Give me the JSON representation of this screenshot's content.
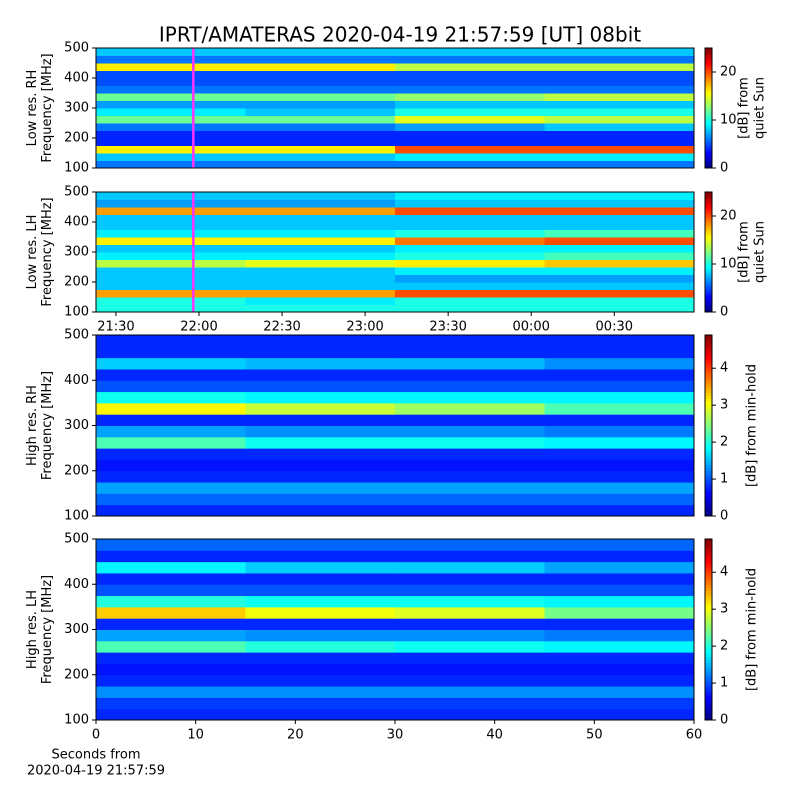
{
  "title": "IPRT/AMATERAS 2020-04-19 21:57:59 [UT]   08bit",
  "chart_data": [
    {
      "type": "heatmap",
      "ylabel": [
        "Low res. RH",
        "Frequency [MHz]"
      ],
      "clabel": [
        "[dB] from",
        "quiet Sun"
      ],
      "xlim": [
        21.38,
        24.98
      ],
      "ylim": [
        100,
        500
      ],
      "yticks": [
        100,
        200,
        300,
        400,
        500
      ],
      "clim": [
        0,
        25
      ],
      "cticks": [
        0,
        10,
        20
      ],
      "colormap": "jet",
      "marker_x": 21.966,
      "marker_color": "#ff33ff",
      "z": [
        [
          6,
          6,
          6,
          6
        ],
        [
          8,
          8,
          9,
          9
        ],
        [
          16,
          16,
          20,
          20
        ],
        [
          4,
          4,
          4,
          4
        ],
        [
          4,
          4,
          4,
          4
        ],
        [
          6,
          6,
          7,
          8
        ],
        [
          12,
          12,
          15,
          14
        ],
        [
          9,
          8,
          10,
          10
        ],
        [
          7,
          7,
          8,
          8
        ],
        [
          12,
          12,
          13,
          14
        ],
        [
          6,
          6,
          6,
          6
        ],
        [
          5,
          5,
          5,
          5
        ],
        [
          5,
          5,
          5,
          5
        ],
        [
          16,
          16,
          14,
          14
        ],
        [
          6,
          6,
          6,
          6
        ],
        [
          8,
          8,
          8,
          8
        ]
      ]
    },
    {
      "type": "heatmap",
      "ylabel": [
        "Low res. LH",
        "Frequency [MHz]"
      ],
      "clabel": [
        "[dB] from",
        "quiet Sun"
      ],
      "xlim": [
        21.38,
        24.98
      ],
      "ylim": [
        100,
        500
      ],
      "yticks": [
        100,
        200,
        300,
        400,
        500
      ],
      "xticks": [
        {
          "value": 21.5,
          "label": "21:30"
        },
        {
          "value": 22,
          "label": "22:00"
        },
        {
          "value": 22.5,
          "label": "22:30"
        },
        {
          "value": 23,
          "label": "23:00"
        },
        {
          "value": 23.5,
          "label": "23:30"
        },
        {
          "value": 24,
          "label": "00:00"
        },
        {
          "value": 24.5,
          "label": "00:30"
        }
      ],
      "clim": [
        0,
        25
      ],
      "cticks": [
        0,
        10,
        20
      ],
      "colormap": "jet",
      "marker_x": 21.966,
      "marker_color": "#ff33ff",
      "z": [
        [
          10,
          10,
          10,
          10
        ],
        [
          10,
          9,
          10,
          10
        ],
        [
          18,
          18,
          20,
          20
        ],
        [
          8,
          8,
          8,
          8
        ],
        [
          8,
          8,
          7,
          7
        ],
        [
          8,
          8,
          9,
          9
        ],
        [
          14,
          15,
          16,
          17
        ],
        [
          9,
          9,
          10,
          11
        ],
        [
          8,
          8,
          9,
          9
        ],
        [
          16,
          16,
          19,
          20
        ],
        [
          9,
          9,
          10,
          11
        ],
        [
          8,
          8,
          8,
          8
        ],
        [
          8,
          8,
          8,
          8
        ],
        [
          18,
          18,
          20,
          20
        ],
        [
          7,
          7,
          8,
          8
        ],
        [
          8,
          8,
          9,
          9
        ]
      ]
    },
    {
      "type": "heatmap",
      "ylabel": [
        "High res. RH",
        "Frequency [MHz]"
      ],
      "clabel": [
        "[dB] from min-hold"
      ],
      "xlim": [
        0,
        60
      ],
      "ylim": [
        100,
        500
      ],
      "yticks": [
        100,
        200,
        300,
        400,
        500
      ],
      "clim": [
        0,
        4.9
      ],
      "cticks": [
        0,
        1,
        2,
        3,
        4
      ],
      "colormap": "jet",
      "z": [
        [
          0.8,
          0.8,
          0.8,
          0.8
        ],
        [
          1.1,
          1.1,
          1.1,
          1.1
        ],
        [
          1.4,
          1.4,
          1.4,
          1.4
        ],
        [
          0.8,
          0.8,
          0.8,
          0.8
        ],
        [
          0.7,
          0.7,
          0.7,
          0.7
        ],
        [
          0.8,
          0.8,
          0.8,
          0.8
        ],
        [
          2.2,
          1.9,
          1.9,
          1.8
        ],
        [
          1.4,
          1.3,
          1.3,
          1.2
        ],
        [
          0.8,
          0.8,
          0.8,
          0.8
        ],
        [
          3.1,
          2.8,
          2.6,
          2.2
        ],
        [
          1.9,
          1.8,
          1.8,
          1.8
        ],
        [
          1.0,
          1.0,
          1.0,
          1.0
        ],
        [
          0.8,
          0.8,
          0.8,
          0.8
        ],
        [
          1.6,
          1.5,
          1.5,
          1.3
        ],
        [
          0.8,
          0.8,
          0.8,
          0.8
        ],
        [
          0.8,
          0.8,
          0.8,
          0.8
        ]
      ]
    },
    {
      "type": "heatmap",
      "ylabel": [
        "High res. LH",
        "Frequency [MHz]"
      ],
      "clabel": [
        "[dB] from min-hold"
      ],
      "xlabel": [
        "Seconds from",
        "2020-04-19 21:57:59"
      ],
      "xlim": [
        0,
        60
      ],
      "ylim": [
        100,
        500
      ],
      "yticks": [
        100,
        200,
        300,
        400,
        500
      ],
      "xticks": [
        0,
        10,
        20,
        30,
        40,
        50,
        60
      ],
      "clim": [
        0,
        4.9
      ],
      "cticks": [
        0,
        1,
        2,
        3,
        4
      ],
      "colormap": "jet",
      "z": [
        [
          0.8,
          0.8,
          0.8,
          0.8
        ],
        [
          0.9,
          0.9,
          0.9,
          0.9
        ],
        [
          1.3,
          1.3,
          1.3,
          1.3
        ],
        [
          0.8,
          0.8,
          0.8,
          0.8
        ],
        [
          0.7,
          0.7,
          0.7,
          0.7
        ],
        [
          0.8,
          0.8,
          0.8,
          0.8
        ],
        [
          2.2,
          2.0,
          1.9,
          1.8
        ],
        [
          1.4,
          1.3,
          1.3,
          1.2
        ],
        [
          0.8,
          0.8,
          0.8,
          0.8
        ],
        [
          3.3,
          3.0,
          2.9,
          2.4
        ],
        [
          2.0,
          1.9,
          1.9,
          1.8
        ],
        [
          1.0,
          1.0,
          1.0,
          1.0
        ],
        [
          0.8,
          0.8,
          0.8,
          0.8
        ],
        [
          1.8,
          1.6,
          1.6,
          1.4
        ],
        [
          0.8,
          0.8,
          0.8,
          0.8
        ],
        [
          1.1,
          1.1,
          1.1,
          1.1
        ]
      ]
    }
  ]
}
